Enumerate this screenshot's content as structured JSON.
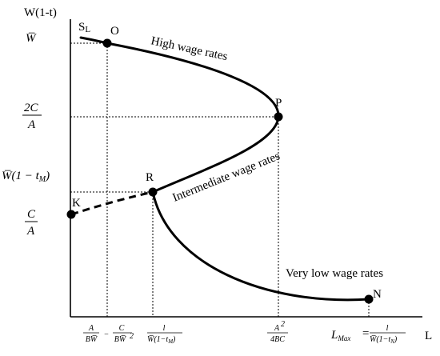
{
  "axes": {
    "y_label": "W(1-t)",
    "x_label": "L"
  },
  "y_ticks": {
    "w_bar": "W̅",
    "two_c": "2C",
    "over_a_1": "A",
    "w_bar_1_tm": "W̅(1 − t",
    "tm_sub": "M",
    "tm_close": ")",
    "c": "C",
    "over_a_2": "A"
  },
  "x_ticks": {
    "t1_num": "A",
    "t1_den": "BW̅",
    "minus": "−",
    "t2_num": "C",
    "t2_den": "BW̅",
    "t2_exp": "2",
    "t3_num": "l",
    "t3_den": "W̅(1−t",
    "t3_sub": "M",
    "t3_close": ")",
    "t4_num": "A",
    "t4_exp": "2",
    "t4_den": "4BC",
    "lmax": "L",
    "lmax_sub": "Max",
    "eq": "=",
    "t5_num": "l",
    "t5_den": "W̅(1−t",
    "t5_sub": "N",
    "t5_close": ")"
  },
  "curve_label": {
    "s": "S",
    "sub": "L"
  },
  "points": {
    "o": "O",
    "p": "P",
    "r": "R",
    "k": "K",
    "n": "N"
  },
  "regions": {
    "high": "High wage rates",
    "intermediate": "Intermediate wage rates",
    "low": "Very low wage rates"
  }
}
